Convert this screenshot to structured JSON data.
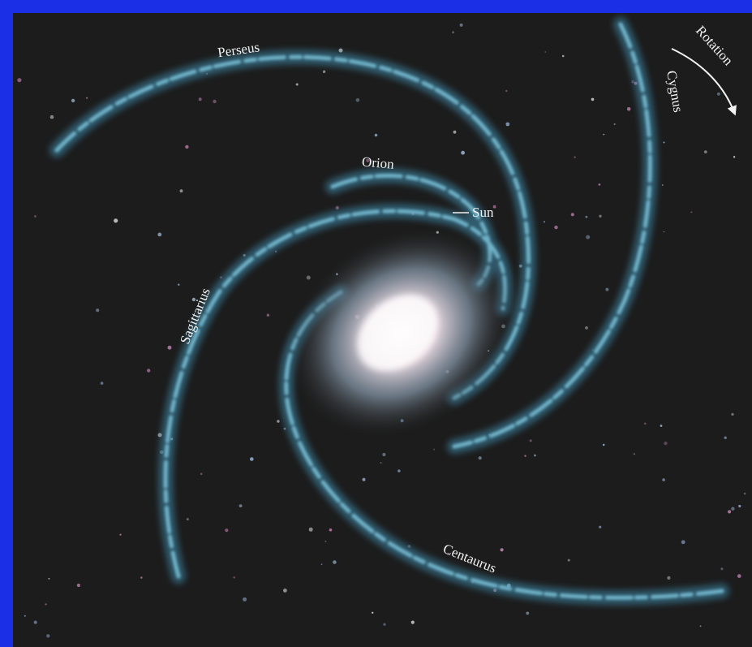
{
  "labels": {
    "perseus": "Perseus",
    "orion": "Orion",
    "sun": "Sun",
    "sagittarius": "Sagittarius",
    "cygnus": "Cygnus",
    "rotation": "Rotation",
    "centaurus": "Centaurus"
  }
}
